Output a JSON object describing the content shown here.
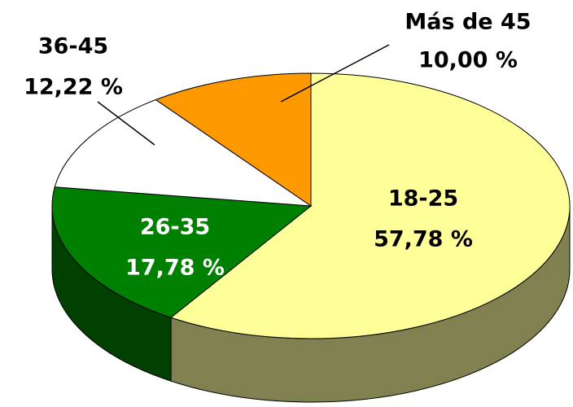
{
  "chart_data": {
    "type": "pie3d",
    "categories": [
      "18-25",
      "26-35",
      "36-45",
      "Más de 45"
    ],
    "values": [
      57.78,
      17.78,
      12.22,
      10.0
    ],
    "value_labels": [
      "57,78 %",
      "17,78 %",
      "12,22 %",
      "10,00 %"
    ],
    "colors": [
      "#ffff99",
      "#008000",
      "#ffffff",
      "#ff9900"
    ],
    "side_colors": [
      "#808050",
      "#004000",
      "#808080",
      "#804c00"
    ]
  }
}
